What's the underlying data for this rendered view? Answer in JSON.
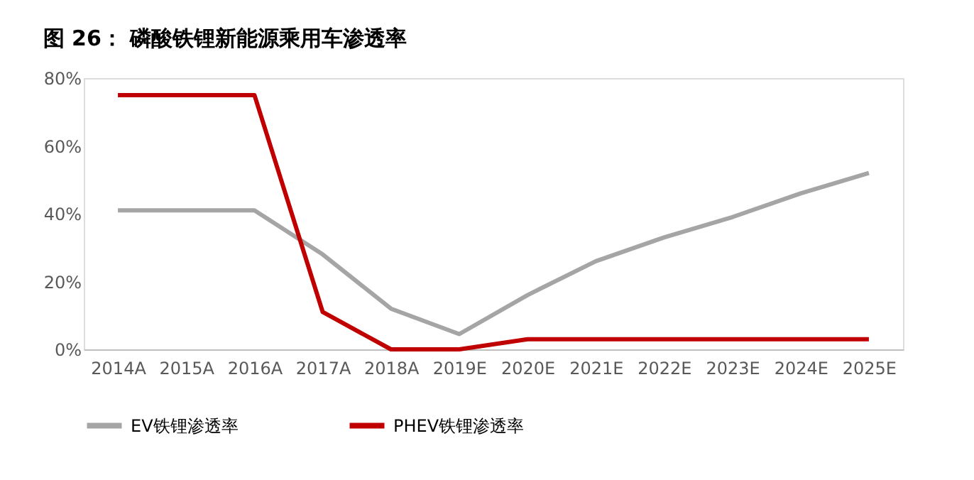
{
  "chart_data": {
    "type": "line",
    "title": "图 26：  磷酸铁锂新能源乘用车渗透率",
    "categories": [
      "2014A",
      "2015A",
      "2016A",
      "2017A",
      "2018A",
      "2019E",
      "2020E",
      "2021E",
      "2022E",
      "2023E",
      "2024E",
      "2025E"
    ],
    "series": [
      {
        "name": "EV铁锂渗透率",
        "color": "#a5a5a5",
        "values": [
          41,
          41,
          41,
          28,
          12,
          4.5,
          16,
          26,
          33,
          39,
          46,
          52
        ]
      },
      {
        "name": "PHEV铁锂渗透率",
        "color": "#c00000",
        "values": [
          75,
          75,
          75,
          11,
          0,
          0,
          3,
          3,
          3,
          3,
          3,
          3
        ]
      }
    ],
    "ylim": [
      0,
      80
    ],
    "yticks": [
      {
        "value": 0,
        "label": "0%"
      },
      {
        "value": 20,
        "label": "20%"
      },
      {
        "value": 40,
        "label": "40%"
      },
      {
        "value": 60,
        "label": "60%"
      },
      {
        "value": 80,
        "label": "80%"
      }
    ],
    "grid": false,
    "legend": "bottom",
    "marker": "none",
    "line_style": "solid"
  }
}
